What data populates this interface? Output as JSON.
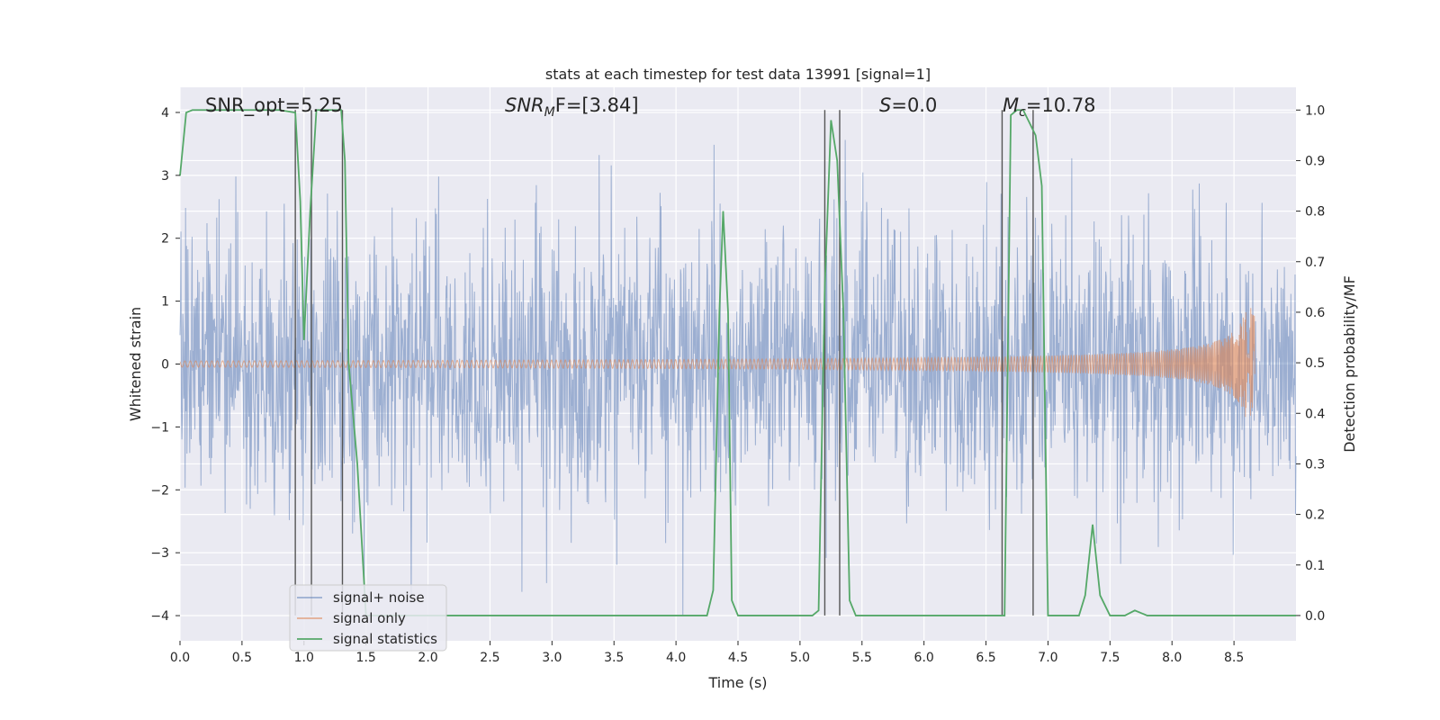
{
  "chart_data": {
    "type": "line",
    "title": "stats at each timestep for test data 13991 [signal=1]",
    "xlabel": "Time (s)",
    "ylabel": "Whitened strain",
    "ylabel_right": "Detection probability/MF",
    "xlim": [
      0.0,
      9.0
    ],
    "ylim": [
      -4.4,
      4.4
    ],
    "ylim_right": [
      -0.05,
      1.045
    ],
    "xticks": [
      "0.0",
      "0.5",
      "1.0",
      "1.5",
      "2.0",
      "2.5",
      "3.0",
      "3.5",
      "4.0",
      "4.5",
      "5.0",
      "5.5",
      "6.0",
      "6.5",
      "7.0",
      "7.5",
      "8.0",
      "8.5"
    ],
    "xtick_values": [
      0.0,
      0.5,
      1.0,
      1.5,
      2.0,
      2.5,
      3.0,
      3.5,
      4.0,
      4.5,
      5.0,
      5.5,
      6.0,
      6.5,
      7.0,
      7.5,
      8.0,
      8.5
    ],
    "yticks": [
      "−4",
      "−3",
      "−2",
      "−1",
      "0",
      "1",
      "2",
      "3",
      "4"
    ],
    "ytick_values": [
      -4,
      -3,
      -2,
      -1,
      0,
      1,
      2,
      3,
      4
    ],
    "yticks_right": [
      "0.0",
      "0.1",
      "0.2",
      "0.3",
      "0.4",
      "0.5",
      "0.6",
      "0.7",
      "0.8",
      "0.9",
      "1.0"
    ],
    "ytick_right_values": [
      0.0,
      0.1,
      0.2,
      0.3,
      0.4,
      0.5,
      0.6,
      0.7,
      0.8,
      0.9,
      1.0
    ],
    "annotations": {
      "snr_opt": "SNR_opt=5.25",
      "snr_mf_main": "SNR",
      "snr_mf_sub": "M",
      "snr_mf_rest": "F=[3.84]",
      "s_main": "S",
      "s_rest": "=0.0",
      "mc_main": "M",
      "mc_sub": "c",
      "mc_rest": "=10.78"
    },
    "legend": {
      "placement": "lower-left",
      "entries": [
        "signal+ noise",
        "signal only",
        "signal statistics"
      ]
    },
    "grid": true,
    "colors": {
      "noise": "#4c72b0",
      "signal": "#dd8452",
      "stats": "#55a868",
      "vlines": "#555555",
      "background": "#eaeaf2",
      "grid": "#ffffff"
    },
    "noise_series": {
      "name": "signal+ noise",
      "description_range": [
        0.0,
        9.0
      ],
      "typical_amplitude": 1.7,
      "peak_amplitude": 3.9
    },
    "signal_series": {
      "name": "signal only",
      "chirp_end_time": 8.67,
      "peak_amplitude_upper": 0.78,
      "peak_amplitude_lower": -0.95
    },
    "stats_series": {
      "name": "signal statistics",
      "x": [
        0.0,
        0.05,
        0.1,
        0.2,
        0.3,
        0.4,
        0.5,
        0.6,
        0.7,
        0.8,
        0.93,
        0.97,
        1.0,
        1.05,
        1.1,
        1.15,
        1.2,
        1.3,
        1.33,
        1.36,
        1.43,
        1.5,
        2.0,
        2.5,
        3.0,
        3.5,
        4.0,
        4.25,
        4.3,
        4.35,
        4.38,
        4.42,
        4.45,
        4.5,
        5.0,
        5.1,
        5.15,
        5.2,
        5.25,
        5.3,
        5.35,
        5.4,
        5.45,
        5.5,
        6.0,
        6.5,
        6.65,
        6.7,
        6.75,
        6.8,
        6.9,
        6.95,
        7.0,
        7.1,
        7.25,
        7.3,
        7.36,
        7.42,
        7.5,
        7.62,
        7.7,
        7.8,
        8.0,
        8.5,
        9.0
      ],
      "y": [
        0.87,
        0.995,
        1.0,
        1.0,
        1.0,
        1.0,
        1.0,
        1.0,
        1.0,
        1.0,
        0.995,
        0.82,
        0.545,
        0.8,
        1.0,
        1.0,
        1.0,
        1.0,
        0.9,
        0.5,
        0.3,
        0.0,
        0.0,
        0.0,
        0.0,
        0.0,
        0.0,
        0.0,
        0.05,
        0.6,
        0.8,
        0.6,
        0.03,
        0.0,
        0.0,
        0.0,
        0.01,
        0.65,
        0.98,
        0.9,
        0.6,
        0.03,
        0.0,
        0.0,
        0.0,
        0.0,
        0.0,
        0.99,
        1.0,
        1.0,
        0.95,
        0.85,
        0.0,
        0.0,
        0.0,
        0.04,
        0.18,
        0.04,
        0.0,
        0.0,
        0.01,
        0.0,
        0.0,
        0.0,
        0.0
      ]
    },
    "vertical_lines_x": [
      0.93,
      1.06,
      1.31,
      5.2,
      5.32,
      6.63,
      6.88
    ]
  }
}
